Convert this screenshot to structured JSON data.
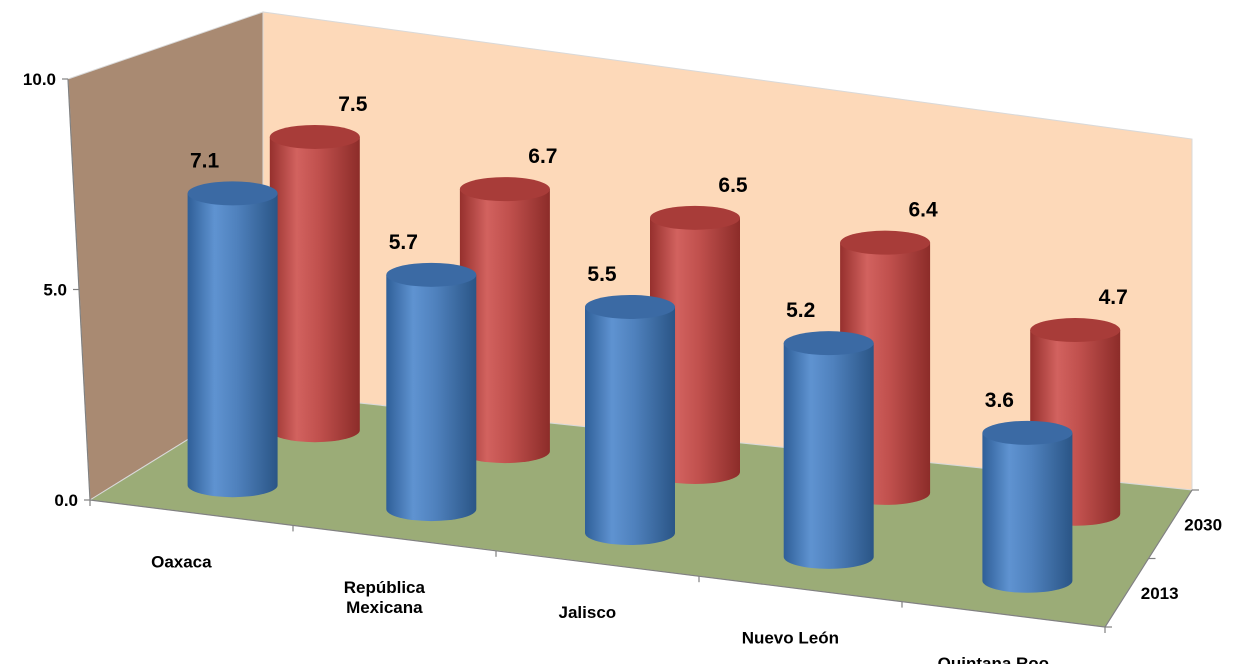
{
  "chart_data": {
    "type": "bar",
    "style": "3d-cylinder",
    "categories": [
      "Oaxaca",
      "República Mexicana",
      "Jalisco",
      "Nuevo León",
      "Quintana Roo"
    ],
    "series": [
      {
        "name": "2013",
        "values": [
          7.1,
          5.7,
          5.5,
          5.2,
          3.6
        ]
      },
      {
        "name": "2030",
        "values": [
          7.5,
          6.7,
          6.5,
          6.4,
          4.7
        ]
      }
    ],
    "series_colors": [
      "#4f81bd",
      "#c0504d"
    ],
    "ylim": [
      0,
      10
    ],
    "yticks": [
      "0.0",
      "5.0",
      "10.0"
    ],
    "wall_colors": {
      "back": "#fdd9b9",
      "side": "#a98a72",
      "floor": "#9bac77"
    },
    "grid": false
  }
}
